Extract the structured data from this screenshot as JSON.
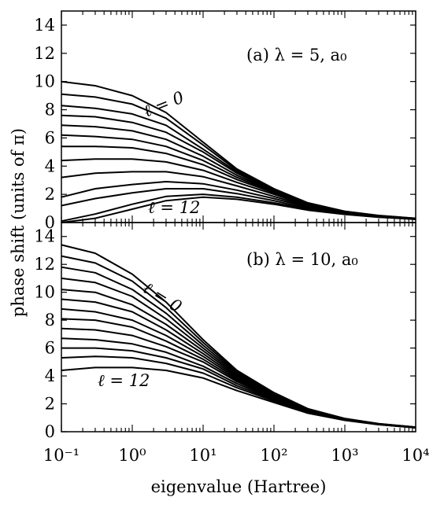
{
  "chart_data": [
    {
      "type": "line",
      "panel_label": "(a) λ = 5, a₀",
      "xlabel": "eigenvalue (Hartree)",
      "ylabel": "phase shift (units of π)",
      "xscale": "log",
      "xlim": [
        0.1,
        10000
      ],
      "ylim": [
        0,
        15
      ],
      "yticks": [
        0,
        2,
        4,
        6,
        8,
        10,
        12,
        14
      ],
      "xticks": [
        "10⁻¹",
        "10⁰",
        "10¹",
        "10²",
        "10³",
        "10⁴"
      ],
      "annotations": [
        "ℓ = 0",
        "ℓ = 12"
      ],
      "series_count": 13,
      "series": [
        {
          "x": [
            0.1,
            0.3,
            1,
            3,
            10,
            30,
            100,
            300,
            1000,
            3000,
            10000
          ],
          "values": [
            10.0,
            9.7,
            9.0,
            7.8,
            5.7,
            3.8,
            2.4,
            1.4,
            0.8,
            0.5,
            0.3
          ]
        },
        {
          "x": [
            0.1,
            0.3,
            1,
            3,
            10,
            30,
            100,
            300,
            1000,
            3000,
            10000
          ],
          "values": [
            9.1,
            8.9,
            8.4,
            7.4,
            5.5,
            3.7,
            2.35,
            1.38,
            0.79,
            0.49,
            0.29
          ]
        },
        {
          "x": [
            0.1,
            0.3,
            1,
            3,
            10,
            30,
            100,
            300,
            1000,
            3000,
            10000
          ],
          "values": [
            8.3,
            8.1,
            7.7,
            6.9,
            5.2,
            3.6,
            2.3,
            1.36,
            0.78,
            0.48,
            0.28
          ]
        },
        {
          "x": [
            0.1,
            0.3,
            1,
            3,
            10,
            30,
            100,
            300,
            1000,
            3000,
            10000
          ],
          "values": [
            7.6,
            7.5,
            7.1,
            6.4,
            5.0,
            3.5,
            2.25,
            1.33,
            0.77,
            0.47,
            0.28
          ]
        },
        {
          "x": [
            0.1,
            0.3,
            1,
            3,
            10,
            30,
            100,
            300,
            1000,
            3000,
            10000
          ],
          "values": [
            6.9,
            6.8,
            6.5,
            5.9,
            4.7,
            3.35,
            2.2,
            1.3,
            0.75,
            0.46,
            0.27
          ]
        },
        {
          "x": [
            0.1,
            0.3,
            1,
            3,
            10,
            30,
            100,
            300,
            1000,
            3000,
            10000
          ],
          "values": [
            6.2,
            6.1,
            5.9,
            5.4,
            4.4,
            3.2,
            2.15,
            1.27,
            0.74,
            0.45,
            0.27
          ]
        },
        {
          "x": [
            0.1,
            0.3,
            1,
            3,
            10,
            30,
            100,
            300,
            1000,
            3000,
            10000
          ],
          "values": [
            5.4,
            5.4,
            5.3,
            4.9,
            4.1,
            3.05,
            2.1,
            1.24,
            0.72,
            0.44,
            0.26
          ]
        },
        {
          "x": [
            0.1,
            0.3,
            1,
            3,
            10,
            30,
            100,
            300,
            1000,
            3000,
            10000
          ],
          "values": [
            4.4,
            4.5,
            4.5,
            4.3,
            3.7,
            2.85,
            2.0,
            1.2,
            0.7,
            0.43,
            0.26
          ]
        },
        {
          "x": [
            0.1,
            0.3,
            1,
            3,
            10,
            30,
            100,
            300,
            1000,
            3000,
            10000
          ],
          "values": [
            3.2,
            3.5,
            3.6,
            3.6,
            3.25,
            2.6,
            1.85,
            1.15,
            0.68,
            0.42,
            0.25
          ]
        },
        {
          "x": [
            0.1,
            0.3,
            1,
            3,
            10,
            30,
            100,
            300,
            1000,
            3000,
            10000
          ],
          "values": [
            1.8,
            2.4,
            2.7,
            2.9,
            2.75,
            2.3,
            1.7,
            1.08,
            0.65,
            0.41,
            0.25
          ]
        },
        {
          "x": [
            0.1,
            0.3,
            1,
            3,
            10,
            30,
            100,
            300,
            1000,
            3000,
            10000
          ],
          "values": [
            1.2,
            1.7,
            2.1,
            2.4,
            2.4,
            2.05,
            1.55,
            1.0,
            0.62,
            0.4,
            0.24
          ]
        },
        {
          "x": [
            0.1,
            0.3,
            1,
            3,
            10,
            30,
            100,
            300,
            1000,
            3000,
            10000
          ],
          "values": [
            0.1,
            0.6,
            1.3,
            1.85,
            2.0,
            1.8,
            1.4,
            0.93,
            0.6,
            0.39,
            0.24
          ]
        },
        {
          "x": [
            0.1,
            0.3,
            1,
            3,
            10,
            30,
            100,
            300,
            1000,
            3000,
            10000
          ],
          "values": [
            0.0,
            0.3,
            0.95,
            1.55,
            1.8,
            1.65,
            1.3,
            0.88,
            0.58,
            0.38,
            0.23
          ]
        }
      ]
    },
    {
      "type": "line",
      "panel_label": "(b) λ = 10, a₀",
      "xlabel": "eigenvalue (Hartree)",
      "ylabel": "phase shift (units of π)",
      "xscale": "log",
      "xlim": [
        0.1,
        10000
      ],
      "ylim": [
        0,
        15
      ],
      "yticks": [
        0,
        2,
        4,
        6,
        8,
        10,
        12,
        14
      ],
      "xticks": [
        "10⁻¹",
        "10⁰",
        "10¹",
        "10²",
        "10³",
        "10⁴"
      ],
      "annotations": [
        "ℓ = 0",
        "ℓ = 12"
      ],
      "series_count": 13,
      "series": [
        {
          "x": [
            0.1,
            0.3,
            1,
            3,
            10,
            30,
            100,
            300,
            1000,
            3000,
            10000
          ],
          "values": [
            13.4,
            12.8,
            11.3,
            9.3,
            6.6,
            4.4,
            2.8,
            1.65,
            0.95,
            0.58,
            0.33
          ]
        },
        {
          "x": [
            0.1,
            0.3,
            1,
            3,
            10,
            30,
            100,
            300,
            1000,
            3000,
            10000
          ],
          "values": [
            12.6,
            12.1,
            10.8,
            8.9,
            6.4,
            4.3,
            2.75,
            1.62,
            0.94,
            0.57,
            0.32
          ]
        },
        {
          "x": [
            0.1,
            0.3,
            1,
            3,
            10,
            30,
            100,
            300,
            1000,
            3000,
            10000
          ],
          "values": [
            11.8,
            11.4,
            10.2,
            8.5,
            6.2,
            4.2,
            2.7,
            1.6,
            0.93,
            0.56,
            0.32
          ]
        },
        {
          "x": [
            0.1,
            0.3,
            1,
            3,
            10,
            30,
            100,
            300,
            1000,
            3000,
            10000
          ],
          "values": [
            11.0,
            10.7,
            9.7,
            8.1,
            6.0,
            4.1,
            2.65,
            1.58,
            0.92,
            0.56,
            0.31
          ]
        },
        {
          "x": [
            0.1,
            0.3,
            1,
            3,
            10,
            30,
            100,
            300,
            1000,
            3000,
            10000
          ],
          "values": [
            10.2,
            10.0,
            9.1,
            7.7,
            5.8,
            4.0,
            2.6,
            1.55,
            0.91,
            0.55,
            0.31
          ]
        },
        {
          "x": [
            0.1,
            0.3,
            1,
            3,
            10,
            30,
            100,
            300,
            1000,
            3000,
            10000
          ],
          "values": [
            9.5,
            9.3,
            8.6,
            7.3,
            5.6,
            3.9,
            2.55,
            1.52,
            0.9,
            0.55,
            0.31
          ]
        },
        {
          "x": [
            0.1,
            0.3,
            1,
            3,
            10,
            30,
            100,
            300,
            1000,
            3000,
            10000
          ],
          "values": [
            8.8,
            8.6,
            8.0,
            6.9,
            5.4,
            3.8,
            2.5,
            1.5,
            0.89,
            0.54,
            0.3
          ]
        },
        {
          "x": [
            0.1,
            0.3,
            1,
            3,
            10,
            30,
            100,
            300,
            1000,
            3000,
            10000
          ],
          "values": [
            8.1,
            8.0,
            7.5,
            6.5,
            5.2,
            3.7,
            2.45,
            1.48,
            0.88,
            0.54,
            0.3
          ]
        },
        {
          "x": [
            0.1,
            0.3,
            1,
            3,
            10,
            30,
            100,
            300,
            1000,
            3000,
            10000
          ],
          "values": [
            7.4,
            7.3,
            6.9,
            6.1,
            5.0,
            3.6,
            2.4,
            1.46,
            0.87,
            0.53,
            0.3
          ]
        },
        {
          "x": [
            0.1,
            0.3,
            1,
            3,
            10,
            30,
            100,
            300,
            1000,
            3000,
            10000
          ],
          "values": [
            6.7,
            6.6,
            6.3,
            5.7,
            4.7,
            3.45,
            2.35,
            1.43,
            0.86,
            0.53,
            0.29
          ]
        },
        {
          "x": [
            0.1,
            0.3,
            1,
            3,
            10,
            30,
            100,
            300,
            1000,
            3000,
            10000
          ],
          "values": [
            6.0,
            6.0,
            5.8,
            5.3,
            4.5,
            3.3,
            2.28,
            1.4,
            0.85,
            0.52,
            0.29
          ]
        },
        {
          "x": [
            0.1,
            0.3,
            1,
            3,
            10,
            30,
            100,
            300,
            1000,
            3000,
            10000
          ],
          "values": [
            5.3,
            5.4,
            5.3,
            4.9,
            4.2,
            3.15,
            2.2,
            1.37,
            0.84,
            0.52,
            0.29
          ]
        },
        {
          "x": [
            0.1,
            0.3,
            1,
            3,
            10,
            30,
            100,
            300,
            1000,
            3000,
            10000
          ],
          "values": [
            4.4,
            4.6,
            4.6,
            4.4,
            3.85,
            2.95,
            2.1,
            1.33,
            0.82,
            0.51,
            0.28
          ]
        }
      ]
    }
  ]
}
